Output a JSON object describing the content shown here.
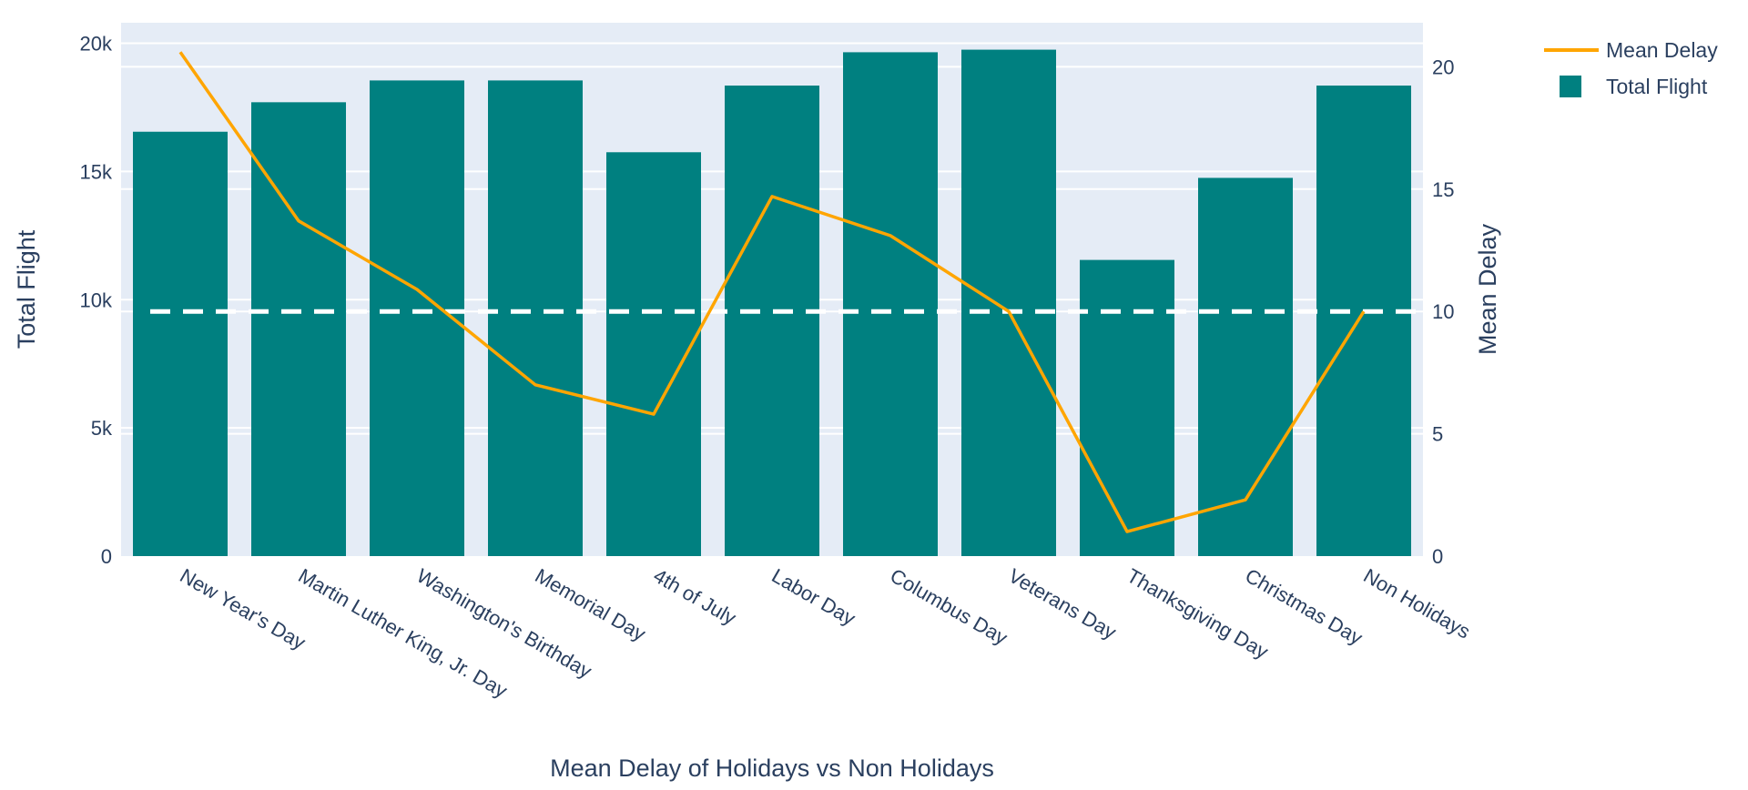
{
  "chart_data": {
    "type": "bar",
    "categories": [
      "New Year's Day",
      "Martin Luther King, Jr. Day",
      "Washington's Birthday",
      "Memorial Day",
      "4th of July",
      "Labor Day",
      "Columbus Day",
      "Veterans Day",
      "Thanksgiving Day",
      "Christmas Day",
      "Non Holidays"
    ],
    "series": [
      {
        "name": "Total Flight",
        "type": "bar",
        "axis": "left",
        "color": "#008080",
        "values": [
          16550,
          17700,
          18550,
          18550,
          15750,
          18350,
          19650,
          19750,
          11550,
          14750,
          18350
        ]
      },
      {
        "name": "Mean Delay",
        "type": "line",
        "axis": "right",
        "color": "#FFA500",
        "values": [
          20.6,
          13.7,
          10.9,
          7.0,
          5.8,
          14.7,
          13.1,
          10.0,
          1.0,
          2.3,
          10.0
        ]
      }
    ],
    "reference_line": {
      "axis": "right",
      "value": 10,
      "style": "dashed",
      "color": "#ffffff"
    },
    "xlabel": "Mean Delay of Holidays vs Non Holidays",
    "ylabel": "Total Flight",
    "y2label": "Mean Delay",
    "ylim": [
      0,
      20800
    ],
    "y2lim": [
      0,
      21.8
    ],
    "yticks": [
      0,
      5000,
      10000,
      15000,
      20000
    ],
    "ytick_labels": [
      "0",
      "5k",
      "10k",
      "15k",
      "20k"
    ],
    "y2ticks": [
      0,
      5,
      10,
      15,
      20
    ],
    "y2tick_labels": [
      "0",
      "5",
      "10",
      "15",
      "20"
    ],
    "legend": [
      "Mean Delay",
      "Total Flight"
    ],
    "legend_position": "top-right",
    "grid": true,
    "plot_background": "#E5ECF6"
  }
}
